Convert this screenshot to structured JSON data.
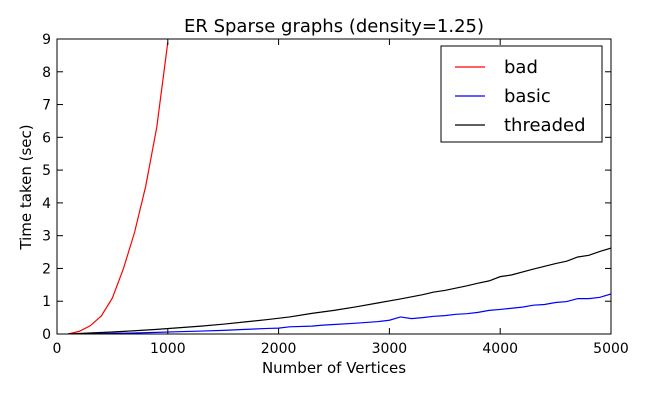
{
  "chart_data": {
    "type": "line",
    "title": "ER Sparse graphs (density=1.25)",
    "xlabel": "Number of Vertices",
    "ylabel": "Time taken (sec)",
    "xlim": [
      0,
      5000
    ],
    "ylim": [
      0,
      9
    ],
    "xticks": [
      "0",
      "1000",
      "2000",
      "3000",
      "4000",
      "5000"
    ],
    "yticks": [
      "0",
      "1",
      "2",
      "3",
      "4",
      "5",
      "6",
      "7",
      "8",
      "9"
    ],
    "grid": false,
    "legend_position": "top-right",
    "series": [
      {
        "name": "bad",
        "color": "#ff0000",
        "x": [
          100,
          200,
          300,
          400,
          500,
          600,
          700,
          800,
          900,
          1000
        ],
        "y": [
          0.0,
          0.08,
          0.25,
          0.55,
          1.1,
          2.0,
          3.1,
          4.5,
          6.3,
          8.9
        ]
      },
      {
        "name": "basic",
        "color": "#0000ff",
        "x": [
          100,
          300,
          500,
          700,
          900,
          1100,
          1300,
          1500,
          1700,
          1900,
          2000,
          2100,
          2300,
          2400,
          2500,
          2700,
          2900,
          3000,
          3100,
          3200,
          3300,
          3400,
          3500,
          3600,
          3700,
          3800,
          3900,
          4000,
          4200,
          4300,
          4400,
          4500,
          4600,
          4700,
          4800,
          4900,
          5000
        ],
        "y": [
          0.0,
          0.01,
          0.02,
          0.03,
          0.05,
          0.07,
          0.09,
          0.11,
          0.14,
          0.17,
          0.18,
          0.22,
          0.24,
          0.27,
          0.29,
          0.33,
          0.38,
          0.42,
          0.52,
          0.47,
          0.5,
          0.54,
          0.56,
          0.6,
          0.62,
          0.66,
          0.72,
          0.75,
          0.82,
          0.88,
          0.9,
          0.96,
          0.99,
          1.08,
          1.08,
          1.12,
          1.22
        ]
      },
      {
        "name": "threaded",
        "color": "#000000",
        "x": [
          100,
          300,
          500,
          700,
          900,
          1100,
          1300,
          1500,
          1700,
          1900,
          2100,
          2300,
          2500,
          2700,
          2900,
          3100,
          3300,
          3400,
          3500,
          3700,
          3800,
          3900,
          4000,
          4100,
          4300,
          4500,
          4600,
          4700,
          4800,
          4900,
          5000
        ],
        "y": [
          0.0,
          0.03,
          0.06,
          0.1,
          0.14,
          0.19,
          0.24,
          0.3,
          0.37,
          0.44,
          0.52,
          0.63,
          0.72,
          0.83,
          0.95,
          1.07,
          1.2,
          1.28,
          1.33,
          1.47,
          1.55,
          1.62,
          1.75,
          1.8,
          1.98,
          2.15,
          2.22,
          2.35,
          2.4,
          2.52,
          2.62
        ]
      }
    ]
  }
}
